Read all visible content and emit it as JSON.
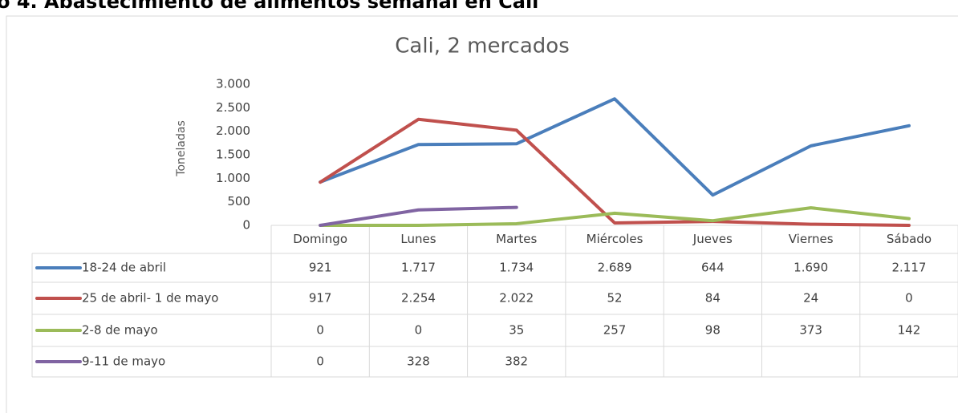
{
  "page_title": "o 4. Abastecimiento de alimentos semanal en Cali",
  "chart_data": {
    "type": "line",
    "title": "Cali, 2 mercados",
    "ylabel": "Toneladas",
    "categories": [
      "Domingo",
      "Lunes",
      "Martes",
      "Miércoles",
      "Jueves",
      "Viernes",
      "Sábado"
    ],
    "series": [
      {
        "name": "18-24 de abril",
        "color": "#4a7ebb",
        "values": [
          921,
          1717,
          1734,
          2689,
          644,
          1690,
          2117
        ],
        "value_labels": [
          "921",
          "1.717",
          "1.734",
          "2.689",
          "644",
          "1.690",
          "2.117"
        ]
      },
      {
        "name": "25 de abril- 1 de mayo",
        "color": "#c0504d",
        "values": [
          917,
          2254,
          2022,
          52,
          84,
          24,
          0
        ],
        "value_labels": [
          "917",
          "2.254",
          "2.022",
          "52",
          "84",
          "24",
          "0"
        ]
      },
      {
        "name": "2-8 de mayo",
        "color": "#9bbb59",
        "values": [
          0,
          0,
          35,
          257,
          98,
          373,
          142
        ],
        "value_labels": [
          "0",
          "0",
          "35",
          "257",
          "98",
          "373",
          "142"
        ]
      },
      {
        "name": "9-11 de mayo",
        "color": "#8064a2",
        "values": [
          0,
          328,
          382,
          null,
          null,
          null,
          null
        ],
        "value_labels": [
          "0",
          "328",
          "382",
          null,
          null,
          null,
          null
        ]
      }
    ],
    "ylim": [
      0,
      3000
    ],
    "yticks": [
      0,
      500,
      {
        "value": 1000,
        "label": "1.000"
      },
      {
        "value": 1500,
        "label": "1.500"
      },
      {
        "value": 2000,
        "label": "2.000"
      },
      {
        "value": 2500,
        "label": "2.500"
      },
      {
        "value": 3000,
        "label": "3.000"
      }
    ],
    "grid": false
  }
}
